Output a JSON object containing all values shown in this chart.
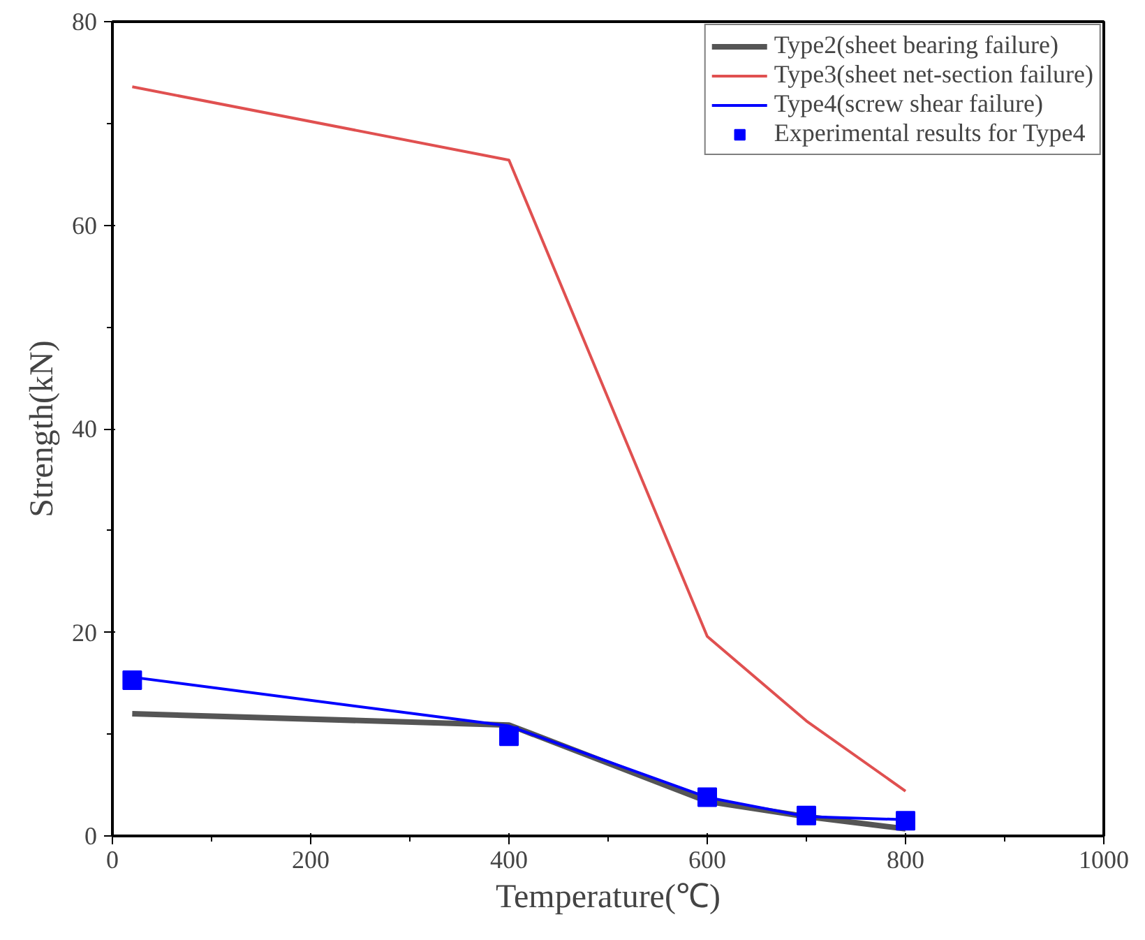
{
  "chart_data": {
    "type": "line",
    "xlabel": "Temperature(℃)",
    "ylabel": "Strength(kN)",
    "xlim": [
      0,
      1000
    ],
    "xticks": [
      0,
      200,
      400,
      600,
      800,
      1000
    ],
    "ylim": [
      0,
      80
    ],
    "yticks": [
      0,
      20,
      40,
      60,
      80
    ],
    "grid": false,
    "legend": "top right",
    "line_style": "solid",
    "series": [
      {
        "name": "Type2(sheet bearing failure)",
        "color": "#555555",
        "x": [
          20,
          400,
          600,
          700,
          800
        ],
        "values": [
          12.0,
          10.9,
          3.4,
          1.9,
          0.7
        ]
      },
      {
        "name": "Type3(sheet net-section failure)",
        "color": "#e05050",
        "x": [
          20,
          400,
          600,
          700,
          800
        ],
        "values": [
          73.6,
          66.4,
          19.6,
          11.3,
          4.4
        ]
      },
      {
        "name": "Type4(screw shear failure)",
        "color": "#0000ff",
        "x": [
          20,
          400,
          600,
          700,
          800
        ],
        "values": [
          15.6,
          10.8,
          3.8,
          1.9,
          1.6
        ]
      },
      {
        "name": "Experimental results for Type4",
        "type": "scatter",
        "marker": "square",
        "color": "#0000ff",
        "x": [
          20,
          400,
          600,
          700,
          800
        ],
        "values": [
          15.3,
          9.8,
          3.8,
          2.0,
          1.5
        ]
      }
    ]
  }
}
